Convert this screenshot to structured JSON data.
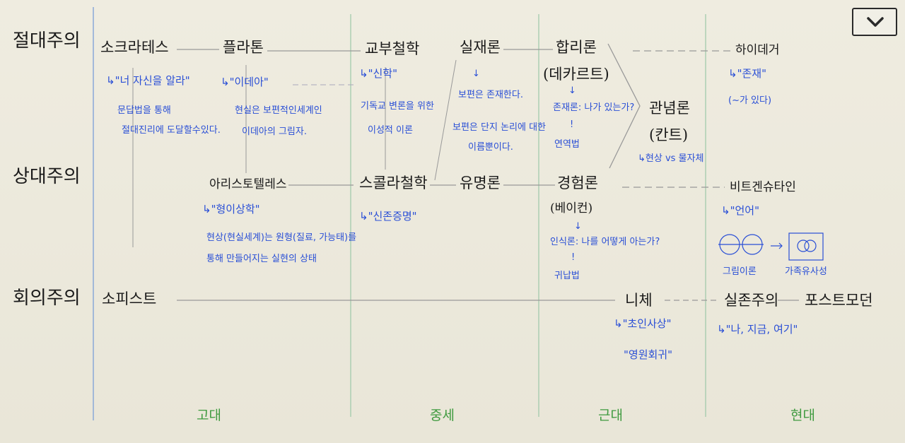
{
  "rows": {
    "absolutism": "절대주의",
    "relativism": "상대주의",
    "skepticism": "회의주의"
  },
  "eras": {
    "ancient": "고대",
    "medieval": "중세",
    "modern": "근대",
    "contemporary": "현대"
  },
  "nodes": {
    "socrates": "소크라테스",
    "plato": "플라톤",
    "scholastic": "교부철학",
    "realism": "실재론",
    "rationalism": "합리론",
    "rationalism_person": "(데카르트)",
    "heidegger": "하이데거",
    "idealism": "관념론",
    "idealism_person": "(칸트)",
    "aristotle": "아리스토텔레스",
    "scholasticism": "스콜라철학",
    "nominalism": "유명론",
    "empiricism": "경험론",
    "empiricism_person": "(베이컨)",
    "wittgenstein": "비트겐슈타인",
    "sophists": "소피스트",
    "nietzsche": "니체",
    "existentialism": "실존주의",
    "postmodern": "포스트모던"
  },
  "notes": {
    "socrates_1": "↳\"너 자신을 알라\"",
    "socrates_2": "문답법을 통해",
    "socrates_3": "절대진리에 도달할수있다.",
    "plato_1": "↳\"이데아\"",
    "plato_2": "현실은 보편적인세계인",
    "plato_3": "이데아의 그림자.",
    "scholastic_1": "↳\"신학\"",
    "scholastic_2": "기독교 변론을 위한",
    "scholastic_3": "이성적 이론",
    "realism_1": "↓",
    "realism_2": "보편은 존재한다.",
    "nominalism_1": "보편은 단지 논리에 대한",
    "nominalism_2": "이름뿐이다.",
    "rationalism_1": "↓",
    "rationalism_2": "존재론: 나가 있는가?",
    "rationalism_3": "!",
    "rationalism_4": "연역법",
    "heidegger_1": "↳\"존재\"",
    "heidegger_2": "(~가 있다)",
    "idealism_1": "↳현상 vs 물자체",
    "aristotle_1": "↳\"형이상학\"",
    "aristotle_2": "현상(현실세계)는 원형(질료, 가능태)를",
    "aristotle_3": "통해 만들어지는 실현의 상태",
    "scholasticism_1": "↳\"신존증명\"",
    "empiricism_1": "↓",
    "empiricism_2": "인식론: 나를 어떻게 아는가?",
    "empiricism_3": "!",
    "empiricism_4": "귀납법",
    "wittgenstein_1": "↳\"언어\"",
    "wittgenstein_2": "그림이론",
    "wittgenstein_3": "가족유사성",
    "nietzsche_1": "↳\"초인사상\"",
    "nietzsche_2": "\"영원회귀\"",
    "existentialism_1": "↳\"나, 지금, 여기\""
  },
  "icons": {
    "toggle": "chevron-down-icon"
  },
  "colors": {
    "ink": "#1a1a1a",
    "note": "#2a4fd6",
    "era": "#3f9a3f",
    "divider": "#9cc8a8",
    "timeline": "#8aa8d8"
  }
}
